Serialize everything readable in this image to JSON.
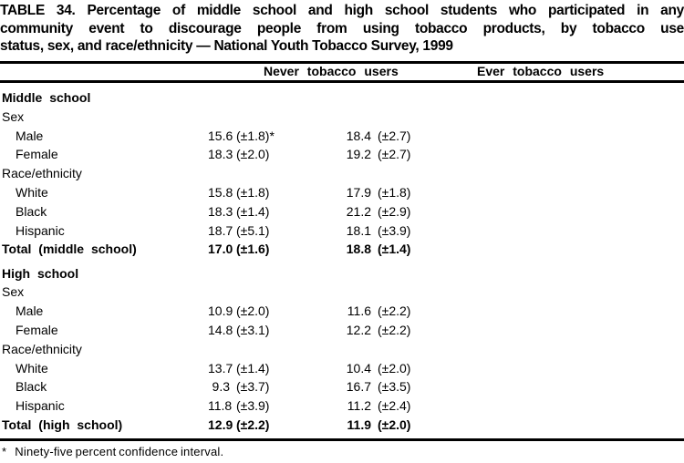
{
  "title_lines": [
    "TABLE 34. Percentage of middle school and high school students who participated in any",
    "community event to discourage people from using tobacco products, by tobacco use",
    "status, sex, and race/ethnicity — National Youth Tobacco Survey, 1999"
  ],
  "columns": [
    "Never tobacco users",
    "Ever tobacco users"
  ],
  "rows": [
    {
      "label": "Middle school",
      "type": "section"
    },
    {
      "label": "Sex",
      "type": "group"
    },
    {
      "label": "Male",
      "type": "item",
      "never": "15.6",
      "never_ci": "(±1.8)*",
      "ever": "18.4",
      "ever_ci": "(±2.7)"
    },
    {
      "label": "Female",
      "type": "item",
      "never": "18.3",
      "never_ci": "(±2.0)",
      "ever": "19.2",
      "ever_ci": "(±2.7)"
    },
    {
      "label": "Race/ethnicity",
      "type": "group"
    },
    {
      "label": "White",
      "type": "item",
      "never": "15.8",
      "never_ci": "(±1.8)",
      "ever": "17.9",
      "ever_ci": "(±1.8)"
    },
    {
      "label": "Black",
      "type": "item",
      "never": "18.3",
      "never_ci": "(±1.4)",
      "ever": "21.2",
      "ever_ci": "(±2.9)"
    },
    {
      "label": "Hispanic",
      "type": "item",
      "never": "18.7",
      "never_ci": "(±5.1)",
      "ever": "18.1",
      "ever_ci": "(±3.9)"
    },
    {
      "label": "Total (middle school)",
      "type": "total",
      "never": "17.0",
      "never_ci": "(±1.6)",
      "ever": "18.8",
      "ever_ci": "(±1.4)"
    },
    {
      "label": "High school",
      "type": "section",
      "gap_before": true
    },
    {
      "label": "Sex",
      "type": "group"
    },
    {
      "label": "Male",
      "type": "item",
      "never": "10.9",
      "never_ci": "(±2.0)",
      "ever": "11.6",
      "ever_ci": "(±2.2)"
    },
    {
      "label": "Female",
      "type": "item",
      "never": "14.8",
      "never_ci": "(±3.1)",
      "ever": "12.2",
      "ever_ci": "(±2.2)"
    },
    {
      "label": "Race/ethnicity",
      "type": "group"
    },
    {
      "label": "White",
      "type": "item",
      "never": "13.7",
      "never_ci": "(±1.4)",
      "ever": "10.4",
      "ever_ci": "(±2.0)"
    },
    {
      "label": "Black",
      "type": "item",
      "never": "9.3",
      "never_ci": "(±3.7)",
      "ever": "16.7",
      "ever_ci": "(±3.5)"
    },
    {
      "label": "Hispanic",
      "type": "item",
      "never": "11.8",
      "never_ci": "(±3.9)",
      "ever": "11.2",
      "ever_ci": "(±2.4)"
    },
    {
      "label": "Total (high school)",
      "type": "total",
      "never": "12.9",
      "never_ci": "(±2.2)",
      "ever": "11.9",
      "ever_ci": "(±2.0)"
    }
  ],
  "footnote_marker": "*",
  "footnote_text": "Ninety-five percent confidence interval."
}
